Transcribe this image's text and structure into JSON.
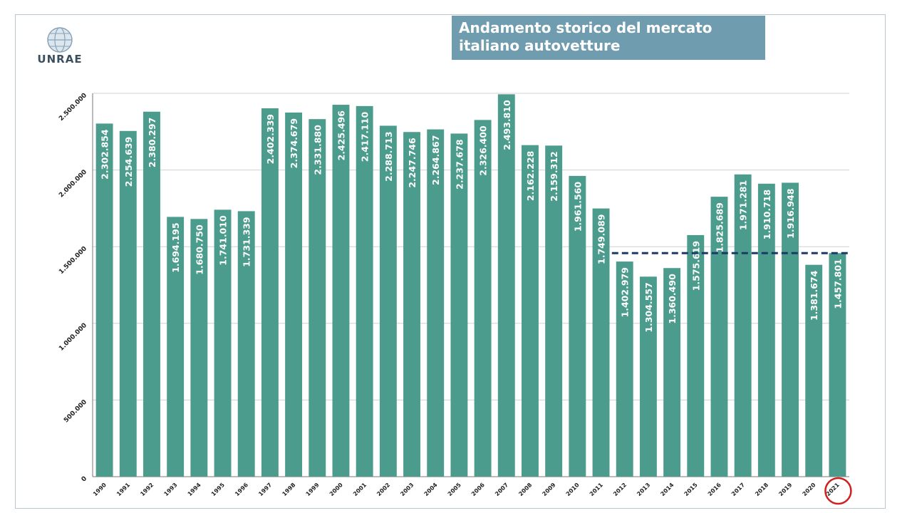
{
  "header": {
    "logo_text": "UNRAE",
    "title_lines": [
      "Andamento storico del mercato",
      "italiano autovetture"
    ]
  },
  "colors": {
    "bar": "#4b9c8c",
    "bar_label": "#ffffff",
    "reference_line": "#1d3a66",
    "highlight_circle": "#d11f1f",
    "grid": "#d0d0d0"
  },
  "chart_data": {
    "type": "bar",
    "title": "Andamento storico del mercato italiano autovetture",
    "categories": [
      "1990",
      "1991",
      "1992",
      "1993",
      "1994",
      "1995",
      "1996",
      "1997",
      "1998",
      "1999",
      "2000",
      "2001",
      "2002",
      "2003",
      "2004",
      "2005",
      "2006",
      "2007",
      "2008",
      "2009",
      "2010",
      "2011",
      "2012",
      "2013",
      "2014",
      "2015",
      "2016",
      "2017",
      "2018",
      "2019",
      "2020",
      "2021"
    ],
    "values": [
      2302854,
      2254639,
      2380297,
      1694195,
      1680750,
      1741010,
      1731339,
      2402339,
      2374679,
      2331880,
      2425496,
      2417110,
      2288713,
      2247746,
      2264867,
      2237678,
      2326400,
      2493810,
      2162228,
      2159312,
      1961560,
      1749089,
      1402979,
      1304557,
      1360490,
      1575619,
      1825689,
      1971281,
      1910718,
      1916948,
      1381674,
      1457801
    ],
    "data_labels": [
      "2.302.854",
      "2.254.639",
      "2.380.297",
      "1.694.195",
      "1.680.750",
      "1.741.010",
      "1.731.339",
      "2.402.339",
      "2.374.679",
      "2.331.880",
      "2.425.496",
      "2.417.110",
      "2.288.713",
      "2.247.746",
      "2.264.867",
      "2.237.678",
      "2.326.400",
      "2.493.810",
      "2.162.228",
      "2.159.312",
      "1.961.560",
      "1.749.089",
      "1.402.979",
      "1.304.557",
      "1.360.490",
      "1.575.619",
      "1.825.689",
      "1.971.281",
      "1.910.718",
      "1.916.948",
      "1.381.674",
      "1.457.801"
    ],
    "yticks": [
      0,
      500000,
      1000000,
      1500000,
      2000000,
      2500000
    ],
    "ytick_labels": [
      "0",
      "500.000",
      "1.000.000",
      "1.500.000",
      "2.000.000",
      "2.500.000"
    ],
    "ylim": [
      0,
      2500000
    ],
    "grid": true,
    "legend": "none",
    "reference_line": {
      "value": 1457801,
      "from_category": "2012",
      "to_category": "2021",
      "style": "dashed"
    },
    "highlight_category": "2021"
  }
}
